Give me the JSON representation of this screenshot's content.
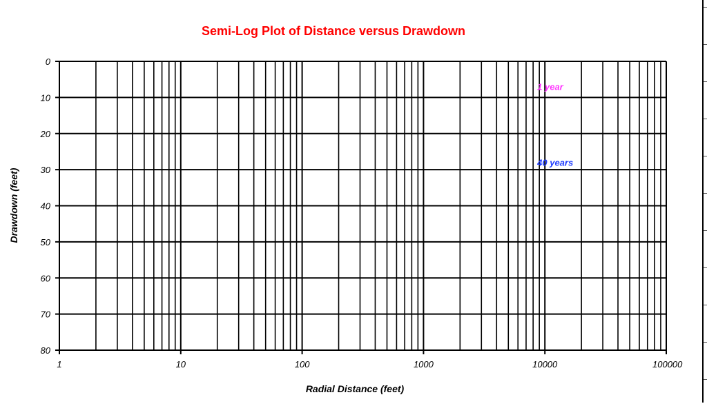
{
  "chart_data": {
    "type": "line",
    "title": "Semi-Log Plot of Distance versus Drawdown",
    "xlabel": "Radial Distance (feet)",
    "ylabel": "Drawdown (feet)",
    "x_scale": "log",
    "xlim": [
      1,
      100000
    ],
    "ylim": [
      0,
      80
    ],
    "y_inverted": true,
    "x_tick_labels": [
      "1",
      "10",
      "100",
      "1000",
      "10000",
      "100000"
    ],
    "y_tick_labels": [
      "0",
      "10",
      "20",
      "30",
      "40",
      "50",
      "60",
      "70",
      "80"
    ],
    "grid": true,
    "series": [],
    "annotations": [
      {
        "text": "1 year",
        "x": 9000,
        "y": 7,
        "color": "#ff33ff"
      },
      {
        "text": "40 years",
        "x": 9000,
        "y": 28,
        "color": "#1f3cff"
      }
    ],
    "colors": {
      "title": "#ff0000",
      "grid": "#000000",
      "axis_text": "#000000"
    }
  }
}
